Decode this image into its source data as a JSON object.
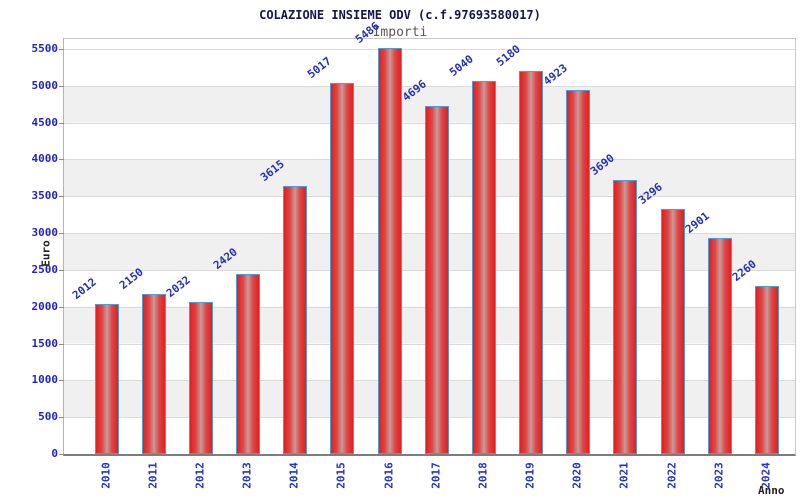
{
  "chart_data": {
    "type": "bar",
    "title": "COLAZIONE INSIEME ODV (c.f.97693580017)",
    "subtitle": "Importi",
    "xlabel": "Anno",
    "ylabel": "Euro",
    "categories": [
      "2010",
      "2011",
      "2012",
      "2013",
      "2014",
      "2015",
      "2016",
      "2017",
      "2018",
      "2019",
      "2020",
      "2021",
      "2022",
      "2023",
      "2024"
    ],
    "values": [
      2012,
      2150,
      2032,
      2420,
      3615,
      5017,
      5486,
      4696,
      5040,
      5180,
      4923,
      3690,
      3296,
      2901,
      2260
    ],
    "ylim": [
      0,
      5500
    ],
    "ytick_step": 500,
    "grid": true,
    "legend": "none",
    "value_labels_rotated_above_bars": true,
    "x_tick_labels_rotated_vertical": true,
    "colors": {
      "bar_fill": "#e31e1e",
      "bar_fill_center_highlight": "#c89a9a",
      "bar_border": "#4f9bd7",
      "tick_label": "#2222cc",
      "value_label": "#2531bb",
      "title_text": "#16164a",
      "subtitle_text": "#5a5a5a",
      "axis_label_text": "#222222",
      "band_alt": "#f0f0f0",
      "gridline": "#dadada"
    }
  }
}
